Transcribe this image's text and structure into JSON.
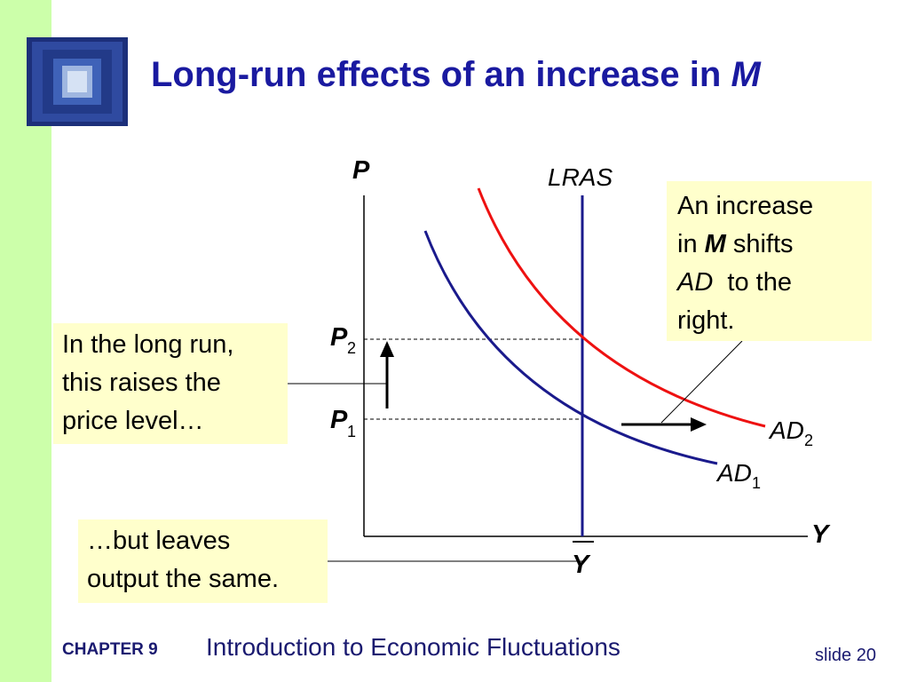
{
  "slide": {
    "title_text": "Long-run effects of an increase in ",
    "title_var": "M"
  },
  "diagram": {
    "y_axis_label": "P",
    "x_axis_label": "Y",
    "lras_label": "LRAS",
    "ybar_label": "Y",
    "p2_label": "P",
    "p2_sub": "2",
    "p1_label": "P",
    "p1_sub": "1",
    "ad1_label": "AD",
    "ad1_sub": "1",
    "ad2_label": "AD",
    "ad2_sub": "2",
    "colors": {
      "ad1_curve": "#1a1a8c",
      "ad2_curve": "#ee1111",
      "lras_line": "#1a1a8c",
      "axes": "#000000"
    }
  },
  "callouts": {
    "right": {
      "line1": "An increase",
      "line2_pre": "in ",
      "line2_var": "M",
      "line2_post": " shifts",
      "line3_var": "AD",
      "line3_post": "  to the",
      "line4": "right."
    },
    "left": {
      "line1": "In the long run,",
      "line2": "this raises the",
      "line3": "price level…"
    },
    "bottom": {
      "line1": "…but leaves",
      "line2": "output the same."
    }
  },
  "footer": {
    "chapter": "CHAPTER 9",
    "title": "Introduction to Economic Fluctuations",
    "slide": "slide 20"
  }
}
